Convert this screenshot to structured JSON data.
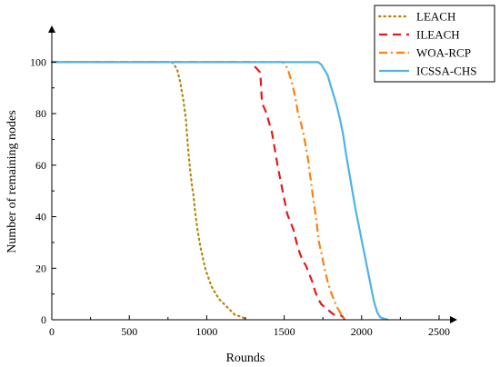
{
  "chart_data": {
    "type": "line",
    "title": "",
    "xlabel": "Rounds",
    "ylabel": "Number of remaining nodes",
    "xlim": [
      0,
      2500
    ],
    "ylim": [
      0,
      110
    ],
    "xticks": [
      "0",
      "500",
      "1000",
      "1500",
      "2000",
      "2500"
    ],
    "yticks": [
      "0",
      "20",
      "40",
      "60",
      "80",
      "100"
    ],
    "xtick_values": [
      0,
      500,
      1000,
      1500,
      2000,
      2500
    ],
    "ytick_values": [
      0,
      20,
      40,
      60,
      80,
      100
    ],
    "grid": false,
    "legend_position": "top-right",
    "series": [
      {
        "name": "LEACH",
        "color": "#B8860B",
        "dash": "dotted",
        "x": [
          0,
          775,
          790,
          810,
          830,
          850,
          865,
          875,
          885,
          895,
          905,
          915,
          925,
          940,
          960,
          990,
          1030,
          1080,
          1130,
          1180,
          1230,
          1260
        ],
        "y": [
          100,
          100,
          99,
          97,
          92,
          85,
          78,
          70,
          63,
          57,
          52,
          48,
          42,
          35,
          28,
          20,
          13,
          8,
          5,
          2,
          1,
          0
        ]
      },
      {
        "name": "ILEACH",
        "color": "#E41A1C",
        "dash": "dashed",
        "x": [
          0,
          1280,
          1300,
          1330,
          1345,
          1350,
          1355,
          1365,
          1380,
          1400,
          1420,
          1440,
          1460,
          1480,
          1500,
          1520,
          1540,
          1560,
          1580,
          1600,
          1620,
          1640,
          1660,
          1680,
          1700,
          1720,
          1740,
          1760,
          1780,
          1800,
          1820,
          1840,
          1860,
          1880,
          1890
        ],
        "y": [
          100,
          100,
          99,
          97,
          96,
          92,
          86,
          83,
          81,
          77,
          73,
          66,
          59,
          53,
          47,
          41,
          38,
          35,
          30,
          26,
          23,
          21,
          18,
          15,
          11,
          8,
          6,
          5,
          4,
          3,
          2,
          2,
          2,
          1,
          0
        ]
      },
      {
        "name": "WOA-RCP",
        "color": "#FF7F0E",
        "dash": "dashdot",
        "x": [
          0,
          1490,
          1510,
          1530,
          1550,
          1570,
          1590,
          1610,
          1625,
          1640,
          1655,
          1665,
          1675,
          1685,
          1695,
          1705,
          1715,
          1725,
          1740,
          1760,
          1780,
          1800,
          1820,
          1840,
          1860,
          1880,
          1890
        ],
        "y": [
          100,
          100,
          99,
          96,
          92,
          87,
          80,
          76,
          72,
          67,
          62,
          57,
          53,
          48,
          44,
          40,
          35,
          30,
          26,
          20,
          15,
          11,
          8,
          5,
          3,
          1,
          0
        ]
      },
      {
        "name": "ICSSA-CHS",
        "color": "#4FB3E8",
        "dash": "solid",
        "x": [
          0,
          1720,
          1740,
          1760,
          1780,
          1800,
          1820,
          1840,
          1860,
          1880,
          1900,
          1920,
          1940,
          1960,
          1980,
          2000,
          2020,
          2040,
          2060,
          2080,
          2100,
          2120,
          2140,
          2160,
          2170
        ],
        "y": [
          100,
          100,
          99,
          97,
          95,
          91,
          87,
          83,
          78,
          72,
          64,
          57,
          50,
          43,
          37,
          31,
          25,
          19,
          13,
          7,
          3,
          1,
          0.5,
          0.2,
          0
        ]
      }
    ]
  }
}
